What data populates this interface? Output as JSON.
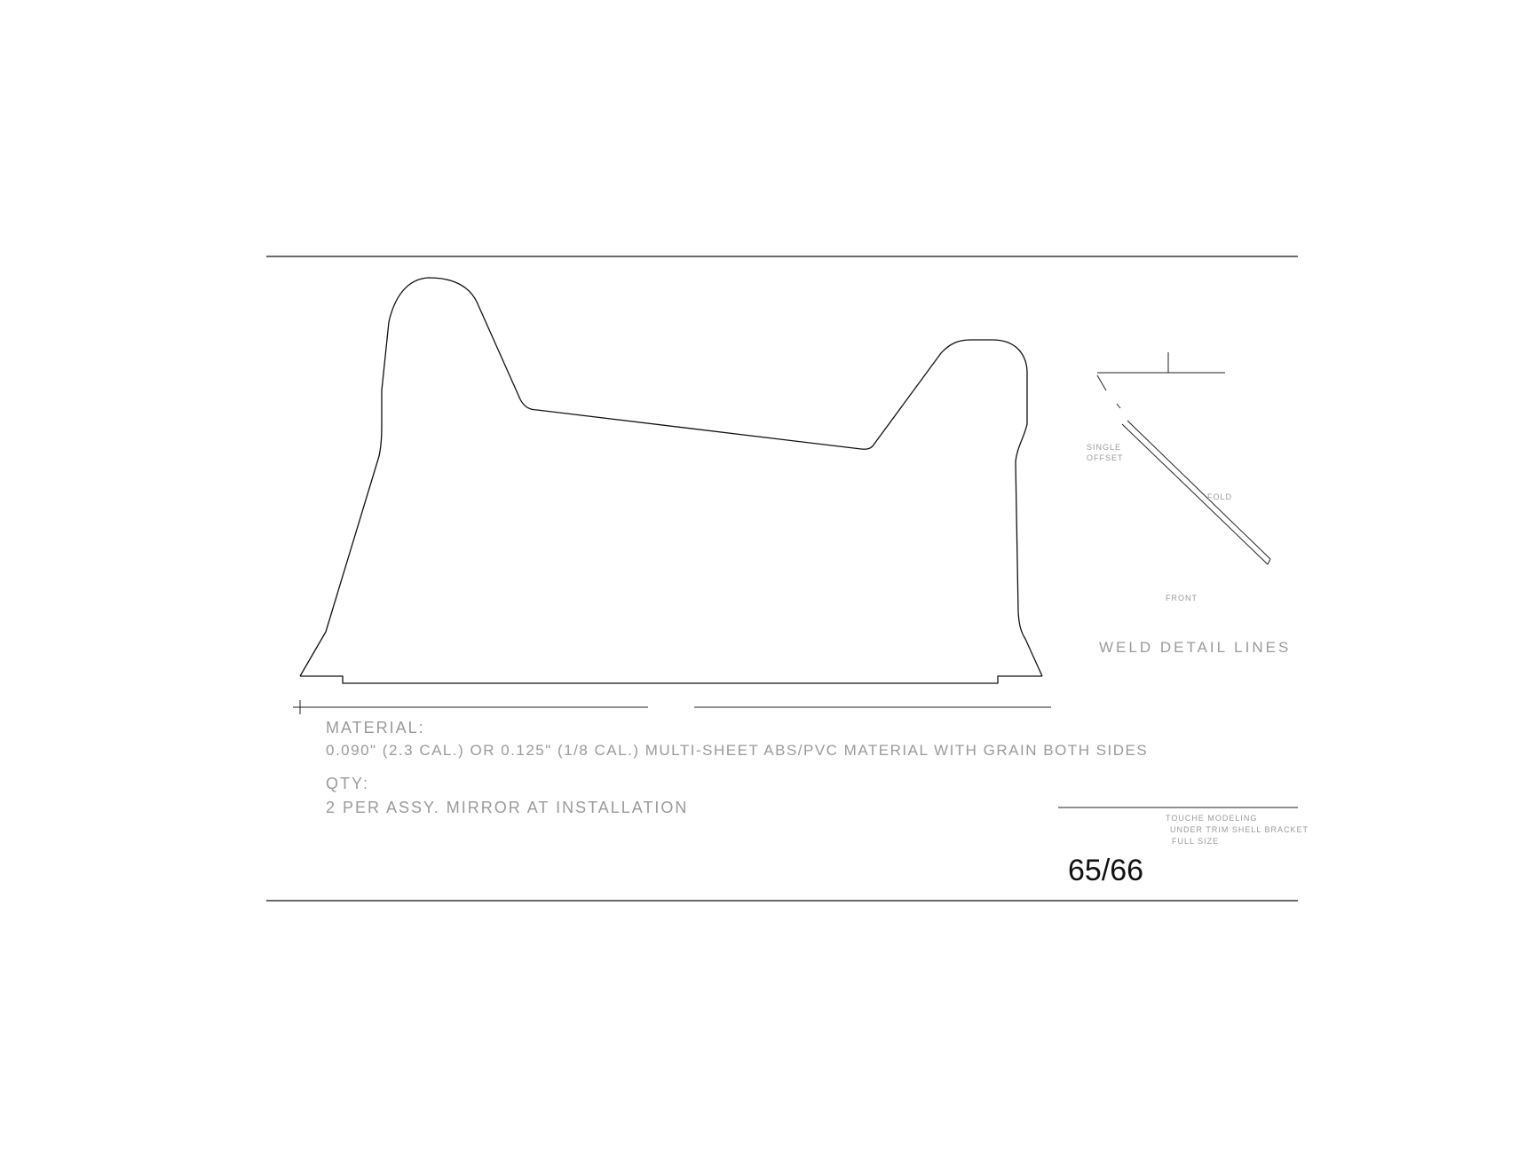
{
  "material": {
    "heading": "MATERIAL:",
    "spec": "0.090\" (2.3 CAL.) OR 0.125\" (1/8 CAL.) MULTI-SHEET ABS/PVC MATERIAL WITH GRAIN BOTH SIDES"
  },
  "quantity": {
    "heading": "QTY:",
    "value": "2 PER ASSY. MIRROR AT INSTALLATION"
  },
  "detail": {
    "label_a": "SINGLE OFFSET",
    "label_b": "FOLD",
    "label_c": "FRONT",
    "title": "WELD DETAIL LINES"
  },
  "title_block": {
    "line1": "TOUCHE MODELING",
    "line2": "UNDER TRIM SHELL BRACKET",
    "line3": "FULL SIZE"
  },
  "page_number": "65/66"
}
